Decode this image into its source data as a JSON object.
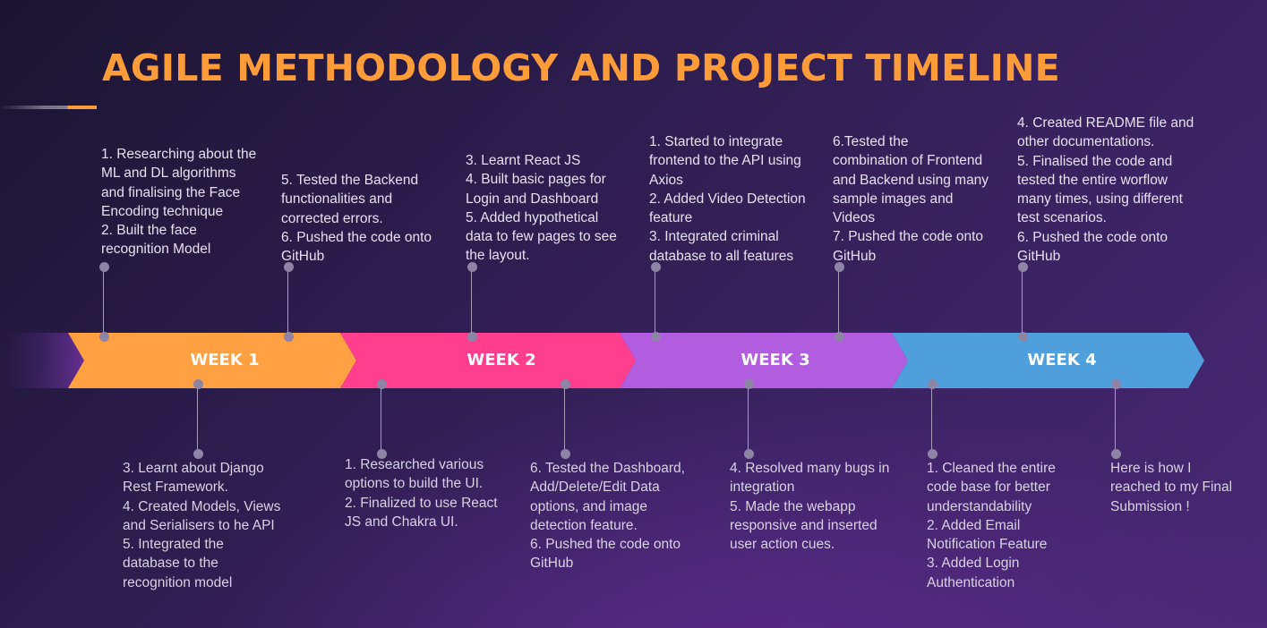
{
  "title": "AGILE METHODOLOGY AND PROJECT TIMELINE",
  "colors": {
    "title": "#ff9c3a",
    "week1": "#ffa042",
    "week2": "#ff3f8e",
    "week3": "#b25ce0",
    "week4": "#4e9fdc"
  },
  "weeks": [
    {
      "label": "WEEK 1"
    },
    {
      "label": "WEEK 2"
    },
    {
      "label": "WEEK 3"
    },
    {
      "label": "WEEK 4"
    }
  ],
  "notes_top": [
    {
      "text": "1. Researching about the\nML and DL algorithms\nand finalising the Face\nEncoding technique\n2. Built the face\nrecognition Model"
    },
    {
      "text": "5. Tested the Backend\nfunctionalities and\ncorrected errors.\n6. Pushed the code onto\nGitHub"
    },
    {
      "text": "3. Learnt React JS\n4. Built basic pages for\nLogin and Dashboard\n5. Added hypothetical\ndata to few pages to see\nthe layout."
    },
    {
      "text": "1. Started to integrate\nfrontend to the API using\nAxios\n2. Added Video Detection\nfeature\n3. Integrated criminal\ndatabase to all features"
    },
    {
      "text": "6.Tested the\ncombination of Frontend\nand Backend using many\nsample images and\nVideos\n7. Pushed the code onto\nGitHub"
    },
    {
      "text": "4. Created README file and\nother documentations.\n5. Finalised the code and\ntested the entire worflow\nmany times, using different\ntest scenarios.\n6. Pushed the code onto\nGitHub"
    }
  ],
  "notes_bottom": [
    {
      "text": "3. Learnt about Django\nRest Framework.\n4. Created Models, Views\nand Serialisers to he API\n5. Integrated the\ndatabase to the\nrecognition model"
    },
    {
      "text": "1. Researched various\noptions to build the UI.\n2. Finalized to use React\nJS and Chakra UI."
    },
    {
      "text": "6. Tested the Dashboard,\nAdd/Delete/Edit Data\noptions, and image\ndetection feature.\n6. Pushed the code onto\nGitHub"
    },
    {
      "text": "4. Resolved many bugs in\nintegration\n5. Made the webapp\nresponsive and inserted\nuser action cues."
    },
    {
      "text": "1. Cleaned the entire\ncode base for better\nunderstandability\n2. Added Email\nNotification Feature\n3. Added Login\nAuthentication"
    },
    {
      "text": "Here is how I\nreached to my Final\nSubmission !"
    }
  ]
}
